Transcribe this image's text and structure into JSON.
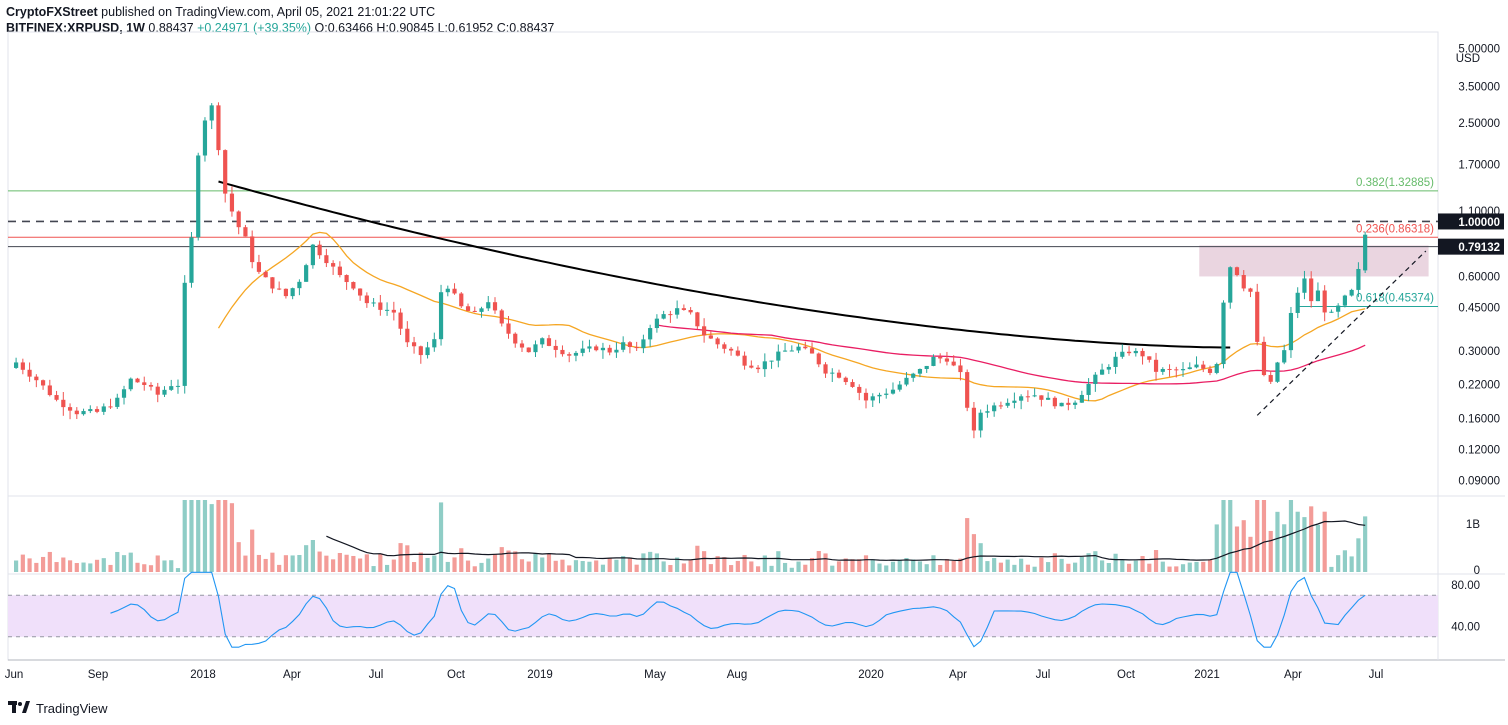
{
  "header": {
    "publisher": "CryptoFXStreet",
    "published_text": "published on TradingView.com, April 05, 2021 21:01:22 UTC",
    "symbol": "BITFINEX:XRPUSD",
    "interval": "1W",
    "last": "0.88437",
    "change": "+0.24971 (+39.35%)",
    "o_label": "O:",
    "o_value": "0.63466",
    "h_label": "H:",
    "h_value": "0.90845",
    "l_label": "L:",
    "l_value": "0.61952",
    "c_label": "C:",
    "c_value": "0.88437"
  },
  "footer": {
    "brand": "TradingView"
  },
  "colors": {
    "up": "#26a69a",
    "down": "#ef5350",
    "vol_up": "#8fcdc6",
    "vol_down": "#f39c98",
    "ma_orange": "#f5a623",
    "ma_red": "#e91e63",
    "rsi_line": "#2196f3",
    "rsi_band": "#f0e0fa",
    "fib_green": "#66bb6a",
    "fib_red": "#ef5350",
    "fib_teal": "#26a69a",
    "zone": "#d9b3c7"
  },
  "chart_data": {
    "type": "candlestick",
    "symbol": "BITFINEX:XRPUSD",
    "interval": "1W",
    "price_scale": "log",
    "y_unit": "USD",
    "y_ticks": [
      "5.00000",
      "3.50000",
      "2.50000",
      "1.70000",
      "1.10000",
      "0.60000",
      "0.45000",
      "0.30000",
      "0.22000",
      "0.16000",
      "0.12000",
      "0.09000"
    ],
    "x_ticks": [
      "Jun",
      "Sep",
      "2018",
      "Apr",
      "Jul",
      "Oct",
      "2019",
      "May",
      "Aug",
      "2020",
      "Apr",
      "Jul",
      "Oct",
      "2021",
      "Apr",
      "Jul"
    ],
    "price_labels": [
      {
        "label": "1.00000",
        "price": 1.0,
        "style": "dashed"
      },
      {
        "label": "0.79132",
        "price": 0.79132,
        "style": "solid"
      }
    ],
    "fib_levels": [
      {
        "ratio": "0.382",
        "value": "1.32885",
        "price": 1.32885
      },
      {
        "ratio": "0.236",
        "value": "0.86318",
        "price": 0.86318
      },
      {
        "ratio": "0.618",
        "value": "0.45374",
        "price": 0.45374
      }
    ],
    "close_path": [
      [
        0,
        0.27
      ],
      [
        3,
        0.23
      ],
      [
        6,
        0.19
      ],
      [
        9,
        0.17
      ],
      [
        12,
        0.17
      ],
      [
        15,
        0.19
      ],
      [
        17,
        0.23
      ],
      [
        19,
        0.22
      ],
      [
        21,
        0.2
      ],
      [
        23,
        0.22
      ],
      [
        24,
        0.22
      ],
      [
        25,
        0.55
      ],
      [
        26,
        0.85
      ],
      [
        27,
        1.9
      ],
      [
        28,
        2.6
      ],
      [
        29,
        2.9
      ],
      [
        30,
        2.0
      ],
      [
        31,
        1.3
      ],
      [
        32,
        1.1
      ],
      [
        33,
        0.95
      ],
      [
        34,
        0.85
      ],
      [
        35,
        0.7
      ],
      [
        36,
        0.62
      ],
      [
        38,
        0.55
      ],
      [
        40,
        0.5
      ],
      [
        42,
        0.58
      ],
      [
        44,
        0.8
      ],
      [
        46,
        0.7
      ],
      [
        48,
        0.6
      ],
      [
        50,
        0.55
      ],
      [
        52,
        0.47
      ],
      [
        54,
        0.45
      ],
      [
        56,
        0.43
      ],
      [
        58,
        0.32
      ],
      [
        60,
        0.29
      ],
      [
        62,
        0.33
      ],
      [
        63,
        0.52
      ],
      [
        64,
        0.55
      ],
      [
        66,
        0.45
      ],
      [
        68,
        0.42
      ],
      [
        70,
        0.48
      ],
      [
        72,
        0.38
      ],
      [
        74,
        0.33
      ],
      [
        76,
        0.3
      ],
      [
        78,
        0.33
      ],
      [
        80,
        0.31
      ],
      [
        82,
        0.29
      ],
      [
        84,
        0.3
      ],
      [
        86,
        0.31
      ],
      [
        88,
        0.3
      ],
      [
        90,
        0.32
      ],
      [
        92,
        0.3
      ],
      [
        94,
        0.38
      ],
      [
        96,
        0.42
      ],
      [
        98,
        0.44
      ],
      [
        100,
        0.42
      ],
      [
        102,
        0.35
      ],
      [
        104,
        0.32
      ],
      [
        106,
        0.3
      ],
      [
        108,
        0.27
      ],
      [
        110,
        0.26
      ],
      [
        112,
        0.28
      ],
      [
        114,
        0.3
      ],
      [
        116,
        0.31
      ],
      [
        118,
        0.29
      ],
      [
        120,
        0.25
      ],
      [
        122,
        0.24
      ],
      [
        124,
        0.22
      ],
      [
        126,
        0.19
      ],
      [
        128,
        0.2
      ],
      [
        130,
        0.21
      ],
      [
        132,
        0.23
      ],
      [
        134,
        0.25
      ],
      [
        136,
        0.28
      ],
      [
        138,
        0.28
      ],
      [
        140,
        0.24
      ],
      [
        141,
        0.18
      ],
      [
        142,
        0.14
      ],
      [
        143,
        0.17
      ],
      [
        145,
        0.18
      ],
      [
        147,
        0.19
      ],
      [
        149,
        0.2
      ],
      [
        151,
        0.2
      ],
      [
        153,
        0.19
      ],
      [
        155,
        0.18
      ],
      [
        157,
        0.19
      ],
      [
        159,
        0.22
      ],
      [
        161,
        0.25
      ],
      [
        163,
        0.28
      ],
      [
        165,
        0.3
      ],
      [
        167,
        0.29
      ],
      [
        169,
        0.25
      ],
      [
        171,
        0.25
      ],
      [
        173,
        0.25
      ],
      [
        175,
        0.26
      ],
      [
        177,
        0.25
      ],
      [
        178,
        0.27
      ],
      [
        179,
        0.48
      ],
      [
        180,
        0.66
      ],
      [
        181,
        0.62
      ],
      [
        182,
        0.55
      ],
      [
        183,
        0.52
      ],
      [
        184,
        0.32
      ],
      [
        185,
        0.24
      ],
      [
        186,
        0.22
      ],
      [
        187,
        0.27
      ],
      [
        188,
        0.3
      ],
      [
        189,
        0.42
      ],
      [
        190,
        0.52
      ],
      [
        191,
        0.58
      ],
      [
        192,
        0.48
      ],
      [
        193,
        0.52
      ],
      [
        194,
        0.44
      ],
      [
        195,
        0.42
      ],
      [
        196,
        0.45
      ],
      [
        197,
        0.49
      ],
      [
        198,
        0.52
      ],
      [
        199,
        0.63
      ],
      [
        200,
        0.88
      ]
    ],
    "volume_scale_label": "1B",
    "rsi_ticks": [
      "80.00",
      "40.00"
    ],
    "rsi_band": [
      30,
      70
    ],
    "rsi_last": 70,
    "annotations": [
      "descending trendline",
      "rising trendline (dashed)",
      "consolidation zone",
      "moving averages (orange, red, black)"
    ]
  }
}
